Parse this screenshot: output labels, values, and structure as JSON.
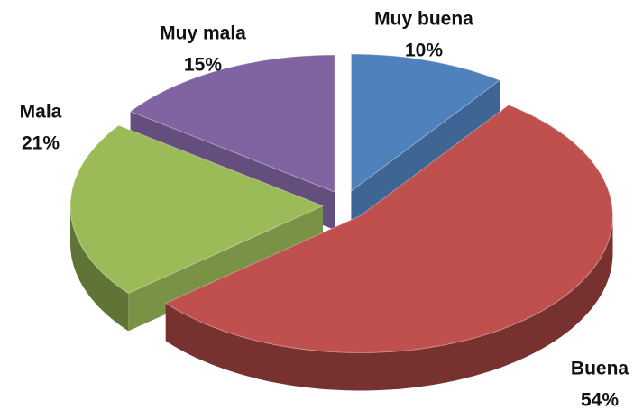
{
  "chart_data": {
    "type": "pie",
    "categories": [
      "Muy buena",
      "Buena",
      "Mala",
      "Muy mala"
    ],
    "values": [
      10,
      54,
      21,
      15
    ],
    "value_labels": [
      "10%",
      "54%",
      "21%",
      "15%"
    ],
    "colors": [
      "#4f81bd",
      "#c0504d",
      "#9bbb59",
      "#8064a2"
    ]
  }
}
